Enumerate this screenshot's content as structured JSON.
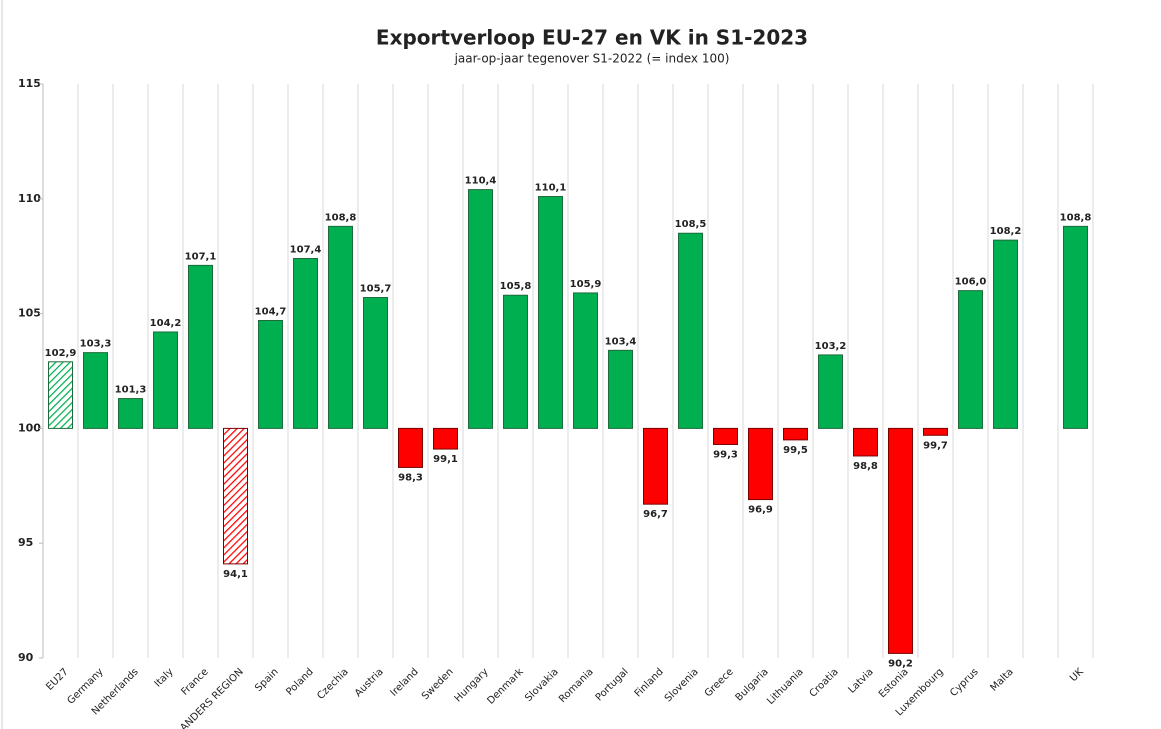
{
  "chart_data": {
    "type": "bar",
    "title": "Exportverloop EU-27 en VK in S1-2023",
    "subtitle": "jaar-op-jaar tegenover S1-2022 (= index 100)",
    "categories": [
      "EU27",
      "Germany",
      "Netherlands",
      "Italy",
      "France",
      "FLANDERS REGION",
      "Spain",
      "Poland",
      "Czechia",
      "Austria",
      "Ireland",
      "Sweden",
      "Hungary",
      "Denmark",
      "Slovakia",
      "Romania",
      "Portugal",
      "Finland",
      "Slovenia",
      "Greece",
      "Bulgaria",
      "Lithuania",
      "Croatia",
      "Latvia",
      "Estonia",
      "Luxembourg",
      "Cyprus",
      "Malta",
      null,
      "UK"
    ],
    "values": [
      102.9,
      103.3,
      101.3,
      104.2,
      107.1,
      94.1,
      104.7,
      107.4,
      108.8,
      105.7,
      98.3,
      99.1,
      110.4,
      105.8,
      110.1,
      105.9,
      103.4,
      96.7,
      108.5,
      99.3,
      96.9,
      99.5,
      103.2,
      98.8,
      90.2,
      99.7,
      106.0,
      108.2,
      null,
      108.8
    ],
    "value_labels": [
      "102,9",
      "103,3",
      "101,3",
      "104,2",
      "107,1",
      "94,1",
      "104,7",
      "107,4",
      "108,8",
      "105,7",
      "98,3",
      "99,1",
      "110,4",
      "105,8",
      "110,1",
      "105,9",
      "103,4",
      "96,7",
      "108,5",
      "99,3",
      "96,9",
      "99,5",
      "103,2",
      "98,8",
      "90,2",
      "99,7",
      "106,0",
      "108,2",
      null,
      "108,8"
    ],
    "hatched": [
      true,
      false,
      false,
      false,
      false,
      true,
      false,
      false,
      false,
      false,
      false,
      false,
      false,
      false,
      false,
      false,
      false,
      false,
      false,
      false,
      false,
      false,
      false,
      false,
      false,
      false,
      false,
      false,
      false,
      false
    ],
    "baseline": 100,
    "positive_color": "#00b050",
    "negative_color": "#ff0000",
    "ylim": [
      90,
      115
    ],
    "yticks": [
      90,
      95,
      100,
      105,
      110,
      115
    ]
  }
}
